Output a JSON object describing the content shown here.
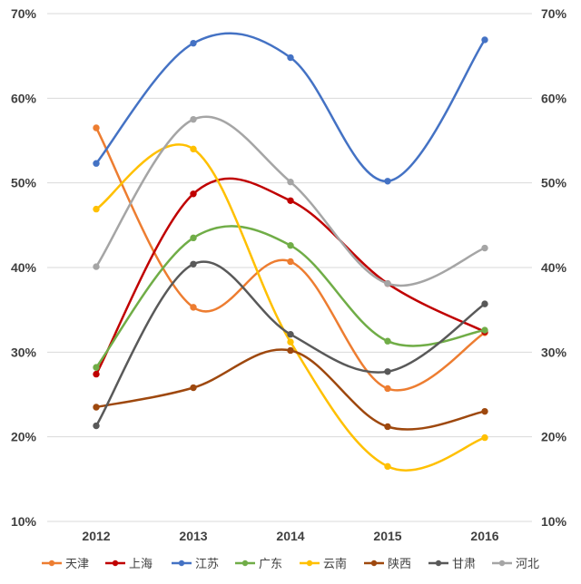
{
  "chart_data": {
    "type": "line",
    "smooth": true,
    "categories": [
      "2012",
      "2013",
      "2014",
      "2015",
      "2016"
    ],
    "y_ticks": [
      "10%",
      "20%",
      "30%",
      "40%",
      "50%",
      "60%",
      "70%"
    ],
    "ylim": [
      10,
      70
    ],
    "grid": true,
    "legend_position": "bottom",
    "series": [
      {
        "name": "天津",
        "color": "#ed7d31",
        "values": [
          56.5,
          35.3,
          40.7,
          25.7,
          32.3
        ]
      },
      {
        "name": "上海",
        "color": "#c00000",
        "values": [
          27.4,
          48.7,
          47.9,
          38.1,
          32.4
        ]
      },
      {
        "name": "江苏",
        "color": "#4472c4",
        "values": [
          52.3,
          66.5,
          64.8,
          50.2,
          66.9
        ]
      },
      {
        "name": "广东",
        "color": "#70ad47",
        "values": [
          28.2,
          43.5,
          42.6,
          31.3,
          32.6
        ]
      },
      {
        "name": "云南",
        "color": "#ffc000",
        "values": [
          46.9,
          54.0,
          31.2,
          16.5,
          19.9
        ]
      },
      {
        "name": "陕西",
        "color": "#9e480e",
        "values": [
          23.5,
          25.8,
          30.2,
          21.2,
          23.0
        ]
      },
      {
        "name": "甘肃",
        "color": "#595959",
        "values": [
          21.3,
          40.4,
          32.1,
          27.7,
          35.7
        ]
      },
      {
        "name": "河北",
        "color": "#a5a5a5",
        "values": [
          40.1,
          57.5,
          50.1,
          38.1,
          42.3
        ]
      }
    ]
  }
}
